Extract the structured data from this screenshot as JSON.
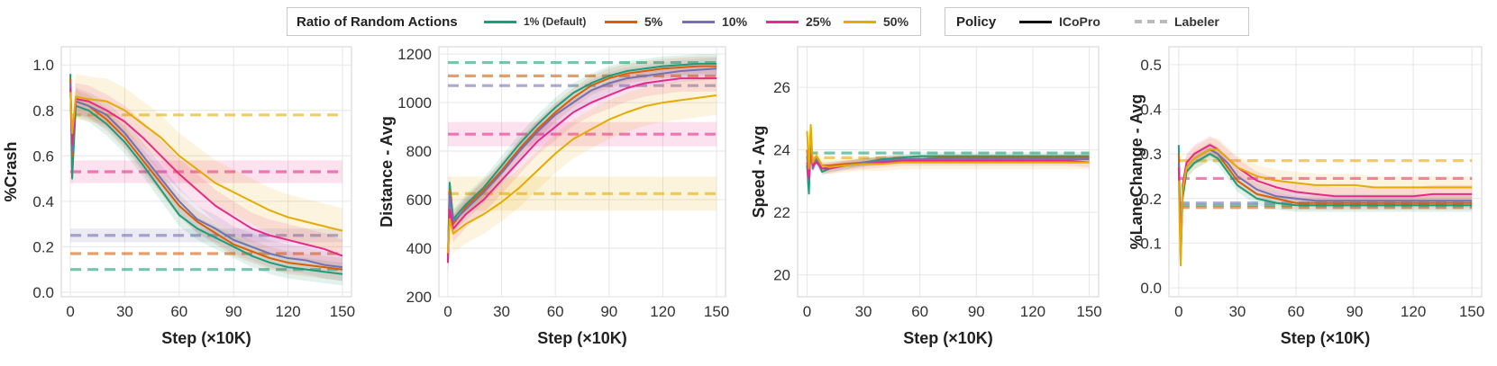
{
  "legend_random": {
    "title": "Ratio of Random Actions",
    "entries": [
      {
        "label": "1% (Default)",
        "color": "#1b9e77"
      },
      {
        "label": "5%",
        "color": "#d95f02"
      },
      {
        "label": "10%",
        "color": "#7570b3"
      },
      {
        "label": "25%",
        "color": "#e7298a"
      },
      {
        "label": "50%",
        "color": "#e6ab02"
      }
    ]
  },
  "legend_policy": {
    "title": "Policy",
    "entries": [
      {
        "label": "ICoPro",
        "color": "#111111",
        "style": "solid"
      },
      {
        "label": "Labeler",
        "color": "#bbbbbb",
        "style": "dashed"
      }
    ]
  },
  "chart_data": [
    {
      "type": "line",
      "ylabel": "%Crash",
      "xlabel": "Step (×10K)",
      "xlim": [
        -5,
        155
      ],
      "ylim": [
        -0.02,
        1.08
      ],
      "xticks": [
        0,
        30,
        60,
        90,
        120,
        150
      ],
      "yticks": [
        0.0,
        0.2,
        0.4,
        0.6,
        0.8,
        1.0
      ],
      "ytick_labels": [
        "0.0",
        "0.2",
        "0.4",
        "0.6",
        "0.8",
        "1.0"
      ],
      "grid": true,
      "x": [
        0,
        1,
        3,
        10,
        20,
        30,
        40,
        50,
        60,
        70,
        80,
        90,
        100,
        110,
        120,
        130,
        140,
        150
      ],
      "series": [
        {
          "name": "1% (Default)",
          "color": "#1b9e77",
          "band": 0.05,
          "values": [
            0.96,
            0.5,
            0.82,
            0.8,
            0.74,
            0.66,
            0.56,
            0.45,
            0.34,
            0.28,
            0.24,
            0.2,
            0.16,
            0.13,
            0.11,
            0.1,
            0.09,
            0.08
          ]
        },
        {
          "name": "5%",
          "color": "#d95f02",
          "band": 0.05,
          "values": [
            0.94,
            0.6,
            0.84,
            0.82,
            0.76,
            0.68,
            0.58,
            0.48,
            0.38,
            0.31,
            0.26,
            0.21,
            0.18,
            0.15,
            0.13,
            0.12,
            0.11,
            0.1
          ]
        },
        {
          "name": "10%",
          "color": "#7570b3",
          "band": 0.06,
          "values": [
            0.92,
            0.62,
            0.84,
            0.82,
            0.78,
            0.7,
            0.6,
            0.5,
            0.4,
            0.32,
            0.28,
            0.23,
            0.2,
            0.17,
            0.15,
            0.14,
            0.12,
            0.11
          ]
        },
        {
          "name": "25%",
          "color": "#e7298a",
          "band": 0.07,
          "values": [
            0.9,
            0.65,
            0.85,
            0.84,
            0.8,
            0.75,
            0.68,
            0.6,
            0.52,
            0.45,
            0.38,
            0.33,
            0.28,
            0.25,
            0.23,
            0.21,
            0.19,
            0.16
          ]
        },
        {
          "name": "50%",
          "color": "#e6ab02",
          "band": 0.1,
          "values": [
            0.88,
            0.7,
            0.86,
            0.85,
            0.84,
            0.8,
            0.74,
            0.68,
            0.6,
            0.54,
            0.48,
            0.44,
            0.4,
            0.36,
            0.33,
            0.31,
            0.29,
            0.27
          ]
        }
      ],
      "labeler_lines": [
        {
          "name": "1% (Default)",
          "color": "#1b9e77",
          "value": 0.1,
          "band": 0.0
        },
        {
          "name": "5%",
          "color": "#d95f02",
          "value": 0.17,
          "band": 0.0
        },
        {
          "name": "10%",
          "color": "#7570b3",
          "value": 0.25,
          "band": 0.03
        },
        {
          "name": "25%",
          "color": "#e7298a",
          "value": 0.53,
          "band": 0.05
        },
        {
          "name": "50%",
          "color": "#e6ab02",
          "value": 0.78,
          "band": 0.0
        }
      ]
    },
    {
      "type": "line",
      "ylabel": "Distance - Avg",
      "xlabel": "Step (×10K)",
      "xlim": [
        -5,
        155
      ],
      "ylim": [
        200,
        1230
      ],
      "xticks": [
        0,
        30,
        60,
        90,
        120,
        150
      ],
      "yticks": [
        200,
        400,
        600,
        800,
        1000,
        1200
      ],
      "ytick_labels": [
        "200",
        "400",
        "600",
        "800",
        "1000",
        "1200"
      ],
      "grid": true,
      "x": [
        0,
        1,
        3,
        10,
        20,
        30,
        40,
        50,
        60,
        70,
        80,
        90,
        100,
        110,
        120,
        130,
        140,
        150
      ],
      "series": [
        {
          "name": "1% (Default)",
          "color": "#1b9e77",
          "band": 40,
          "values": [
            350,
            670,
            520,
            580,
            650,
            740,
            830,
            910,
            980,
            1040,
            1080,
            1110,
            1130,
            1140,
            1150,
            1155,
            1160,
            1160
          ]
        },
        {
          "name": "5%",
          "color": "#d95f02",
          "band": 40,
          "values": [
            340,
            640,
            500,
            570,
            640,
            720,
            810,
            890,
            960,
            1020,
            1070,
            1100,
            1120,
            1130,
            1140,
            1145,
            1150,
            1150
          ]
        },
        {
          "name": "10%",
          "color": "#7570b3",
          "band": 45,
          "values": [
            360,
            620,
            510,
            560,
            630,
            710,
            800,
            880,
            950,
            1000,
            1050,
            1080,
            1100,
            1110,
            1120,
            1130,
            1135,
            1140
          ]
        },
        {
          "name": "25%",
          "color": "#e7298a",
          "band": 55,
          "values": [
            340,
            560,
            480,
            540,
            600,
            680,
            760,
            840,
            900,
            960,
            1000,
            1030,
            1060,
            1080,
            1090,
            1100,
            1100,
            1100
          ]
        },
        {
          "name": "50%",
          "color": "#e6ab02",
          "band": 80,
          "values": [
            380,
            520,
            460,
            500,
            540,
            590,
            650,
            720,
            790,
            850,
            890,
            930,
            960,
            985,
            1000,
            1010,
            1020,
            1030
          ]
        }
      ],
      "labeler_lines": [
        {
          "name": "1% (Default)",
          "color": "#1b9e77",
          "value": 1165,
          "band": 0
        },
        {
          "name": "5%",
          "color": "#d95f02",
          "value": 1110,
          "band": 0
        },
        {
          "name": "10%",
          "color": "#7570b3",
          "value": 1070,
          "band": 0
        },
        {
          "name": "25%",
          "color": "#e7298a",
          "value": 870,
          "band": 50
        },
        {
          "name": "50%",
          "color": "#e6ab02",
          "value": 625,
          "band": 70
        }
      ]
    },
    {
      "type": "line",
      "ylabel": "Speed - Avg",
      "xlabel": "Step (×10K)",
      "xlim": [
        -5,
        155
      ],
      "ylim": [
        19.3,
        27.3
      ],
      "xticks": [
        0,
        30,
        60,
        90,
        120,
        150
      ],
      "yticks": [
        20,
        22,
        24,
        26
      ],
      "ytick_labels": [
        "20",
        "22",
        "24",
        "26"
      ],
      "grid": true,
      "x": [
        0,
        1,
        2,
        3,
        5,
        8,
        12,
        20,
        30,
        40,
        50,
        60,
        70,
        80,
        90,
        100,
        110,
        120,
        130,
        140,
        150
      ],
      "series": [
        {
          "name": "1% (Default)",
          "color": "#1b9e77",
          "band": 0.12,
          "values": [
            23.5,
            22.6,
            24.3,
            23.4,
            23.7,
            23.3,
            23.4,
            23.5,
            23.6,
            23.7,
            23.75,
            23.8,
            23.8,
            23.8,
            23.8,
            23.8,
            23.8,
            23.8,
            23.8,
            23.8,
            23.8
          ]
        },
        {
          "name": "5%",
          "color": "#d95f02",
          "band": 0.12,
          "values": [
            24.0,
            23.2,
            24.6,
            23.5,
            23.8,
            23.5,
            23.5,
            23.55,
            23.6,
            23.65,
            23.7,
            23.7,
            23.75,
            23.75,
            23.75,
            23.75,
            23.75,
            23.75,
            23.75,
            23.75,
            23.75
          ]
        },
        {
          "name": "10%",
          "color": "#7570b3",
          "band": 0.14,
          "values": [
            23.8,
            23.0,
            24.2,
            23.4,
            23.7,
            23.4,
            23.45,
            23.5,
            23.6,
            23.65,
            23.7,
            23.7,
            23.7,
            23.7,
            23.7,
            23.7,
            23.7,
            23.7,
            23.7,
            23.7,
            23.7
          ]
        },
        {
          "name": "25%",
          "color": "#e7298a",
          "band": 0.16,
          "values": [
            23.6,
            23.1,
            24.0,
            23.5,
            23.6,
            23.4,
            23.4,
            23.5,
            23.55,
            23.6,
            23.65,
            23.65,
            23.65,
            23.65,
            23.65,
            23.65,
            23.65,
            23.65,
            23.65,
            23.65,
            23.6
          ]
        },
        {
          "name": "50%",
          "color": "#e6ab02",
          "band": 0.22,
          "values": [
            24.6,
            23.4,
            24.8,
            23.6,
            23.8,
            23.5,
            23.45,
            23.5,
            23.55,
            23.55,
            23.6,
            23.6,
            23.6,
            23.6,
            23.6,
            23.6,
            23.6,
            23.6,
            23.6,
            23.6,
            23.6
          ]
        }
      ],
      "labeler_lines": [
        {
          "name": "1% (Default)",
          "color": "#1b9e77",
          "value": 23.9,
          "band": 0
        },
        {
          "name": "50%",
          "color": "#e6ab02",
          "value": 23.75,
          "band": 0
        }
      ]
    },
    {
      "type": "line",
      "ylabel": "%LaneChange - Avg",
      "xlabel": "Step (×10K)",
      "xlim": [
        -5,
        155
      ],
      "ylim": [
        -0.02,
        0.54
      ],
      "xticks": [
        0,
        30,
        60,
        90,
        120,
        150
      ],
      "yticks": [
        0.0,
        0.1,
        0.2,
        0.3,
        0.4,
        0.5
      ],
      "ytick_labels": [
        "0.0",
        "0.1",
        "0.2",
        "0.3",
        "0.4",
        "0.5"
      ],
      "grid": true,
      "x": [
        0,
        1,
        2,
        4,
        8,
        12,
        16,
        20,
        25,
        30,
        40,
        50,
        60,
        70,
        80,
        90,
        100,
        110,
        120,
        130,
        140,
        150
      ],
      "series": [
        {
          "name": "1% (Default)",
          "color": "#1b9e77",
          "band": 0.015,
          "values": [
            0.32,
            0.06,
            0.2,
            0.26,
            0.28,
            0.29,
            0.3,
            0.29,
            0.26,
            0.23,
            0.2,
            0.19,
            0.185,
            0.185,
            0.185,
            0.185,
            0.185,
            0.185,
            0.185,
            0.185,
            0.185,
            0.185
          ]
        },
        {
          "name": "5%",
          "color": "#d95f02",
          "band": 0.015,
          "values": [
            0.3,
            0.08,
            0.21,
            0.27,
            0.29,
            0.3,
            0.31,
            0.3,
            0.27,
            0.24,
            0.21,
            0.2,
            0.19,
            0.19,
            0.19,
            0.19,
            0.19,
            0.19,
            0.19,
            0.19,
            0.19,
            0.19
          ]
        },
        {
          "name": "10%",
          "color": "#7570b3",
          "band": 0.015,
          "values": [
            0.28,
            0.1,
            0.22,
            0.27,
            0.29,
            0.3,
            0.31,
            0.3,
            0.28,
            0.25,
            0.22,
            0.205,
            0.2,
            0.195,
            0.195,
            0.195,
            0.195,
            0.195,
            0.195,
            0.195,
            0.195,
            0.195
          ]
        },
        {
          "name": "25%",
          "color": "#e7298a",
          "band": 0.02,
          "values": [
            0.27,
            0.07,
            0.23,
            0.28,
            0.3,
            0.31,
            0.32,
            0.31,
            0.29,
            0.27,
            0.24,
            0.225,
            0.215,
            0.21,
            0.205,
            0.205,
            0.205,
            0.205,
            0.205,
            0.21,
            0.21,
            0.21
          ]
        },
        {
          "name": "50%",
          "color": "#e6ab02",
          "band": 0.025,
          "values": [
            0.24,
            0.05,
            0.22,
            0.27,
            0.29,
            0.3,
            0.31,
            0.31,
            0.29,
            0.27,
            0.25,
            0.24,
            0.235,
            0.23,
            0.23,
            0.23,
            0.225,
            0.225,
            0.225,
            0.225,
            0.225,
            0.225
          ]
        }
      ],
      "labeler_lines": [
        {
          "name": "1% (Default)",
          "color": "#1b9e77",
          "value": 0.185,
          "band": 0
        },
        {
          "name": "5%",
          "color": "#d95f02",
          "value": 0.18,
          "band": 0
        },
        {
          "name": "10%",
          "color": "#7570b3",
          "value": 0.19,
          "band": 0
        },
        {
          "name": "25%",
          "color": "#e7298a",
          "value": 0.245,
          "band": 0
        },
        {
          "name": "50%",
          "color": "#e6ab02",
          "value": 0.285,
          "band": 0
        }
      ]
    }
  ]
}
